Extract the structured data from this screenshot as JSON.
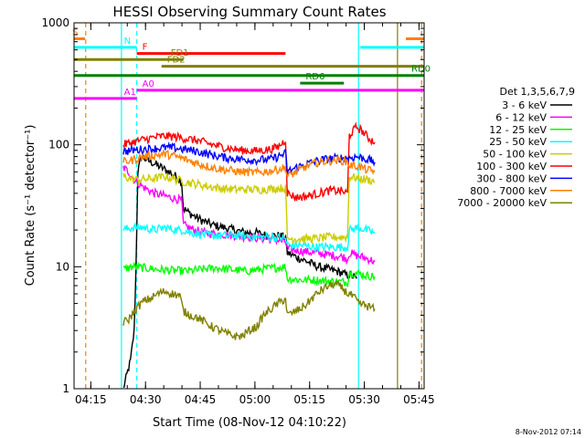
{
  "chart_data": {
    "type": "line",
    "title": "HESSI Observing Summary Count Rates",
    "xlabel": "Start Time (08-Nov-12 04:10:22)",
    "ylabel": "Count Rate (s⁻¹ detector⁻¹)",
    "footer_date": "8-Nov-2012 07:14",
    "y_scale": "log",
    "ylim": [
      1,
      1000
    ],
    "xlim_minutes": [
      0,
      96
    ],
    "x_ticks": [
      {
        "label": "04:15",
        "minute": 4.6
      },
      {
        "label": "04:30",
        "minute": 19.6
      },
      {
        "label": "04:45",
        "minute": 34.6
      },
      {
        "label": "05:00",
        "minute": 49.6
      },
      {
        "label": "05:15",
        "minute": 64.6
      },
      {
        "label": "05:30",
        "minute": 79.6
      },
      {
        "label": "05:45",
        "minute": 94.6
      }
    ],
    "y_ticks": [
      {
        "label": "1",
        "value": 1
      },
      {
        "label": "10",
        "value": 10
      },
      {
        "label": "100",
        "value": 100
      },
      {
        "label": "1000",
        "value": 1000
      }
    ],
    "legend": {
      "header": "Det 1,3,5,6,7,9",
      "position": "right"
    },
    "flags": [
      {
        "label": "S",
        "color": "#ff7f00",
        "y": 740,
        "segments": [
          [
            0,
            3
          ],
          [
            91,
            96
          ]
        ]
      },
      {
        "label": "N",
        "color": "#00ffff",
        "y": 630,
        "segments": [
          [
            0,
            17.2
          ],
          [
            78.5,
            96
          ]
        ]
      },
      {
        "label": "F",
        "color": "#ff0000",
        "y": 560,
        "segments": [
          [
            17.2,
            58
          ]
        ]
      },
      {
        "label": "FD1",
        "color": "#808000",
        "y": 500,
        "segments": [
          [
            0,
            30
          ]
        ]
      },
      {
        "label": "FD2",
        "color": "#808000",
        "y": 440,
        "segments": [
          [
            24,
            96
          ]
        ]
      },
      {
        "label": "RD0",
        "color": "#008000",
        "y": 370,
        "segments": [
          [
            0,
            96
          ]
        ]
      },
      {
        "label": "RD6",
        "color": "#008000",
        "y": 320,
        "segments": [
          [
            62,
            74
          ]
        ]
      },
      {
        "label": "A0",
        "color": "#ff00ff",
        "y": 280,
        "segments": [
          [
            17.2,
            96
          ]
        ]
      },
      {
        "label": "A1",
        "color": "#ff00ff",
        "y": 240,
        "segments": [
          [
            0,
            17.2
          ]
        ]
      }
    ],
    "vertical_markers": [
      {
        "minute": 3.2,
        "color": "#ff7f00",
        "style": "dashed"
      },
      {
        "minute": 13.0,
        "color": "#00ffff",
        "style": "solid"
      },
      {
        "minute": 17.2,
        "color": "#00ffff",
        "style": "dashed"
      },
      {
        "minute": 78.0,
        "color": "#00ffff",
        "style": "solid"
      },
      {
        "minute": 88.7,
        "color": "#808000",
        "style": "solid"
      },
      {
        "minute": 95.3,
        "color": "#ff7f00",
        "style": "dashed"
      }
    ],
    "series": [
      {
        "name": "3 - 6 keV",
        "color": "#000000",
        "points": [
          [
            13.5,
            1
          ],
          [
            14.5,
            1.3
          ],
          [
            15.5,
            1.7
          ],
          [
            16.5,
            3
          ],
          [
            17.0,
            10
          ],
          [
            17.5,
            60
          ],
          [
            18.5,
            80
          ],
          [
            20,
            75
          ],
          [
            22,
            70
          ],
          [
            24,
            65
          ],
          [
            26,
            60
          ],
          [
            28,
            55
          ],
          [
            29.5,
            50
          ],
          [
            30,
            30
          ],
          [
            32,
            27
          ],
          [
            35,
            24
          ],
          [
            38,
            22
          ],
          [
            41,
            21
          ],
          [
            44,
            20
          ],
          [
            47,
            19
          ],
          [
            50,
            19
          ],
          [
            53,
            18
          ],
          [
            56,
            18
          ],
          [
            58,
            17.5
          ],
          [
            58.5,
            13
          ],
          [
            61,
            12
          ],
          [
            64,
            11
          ],
          [
            67,
            10
          ],
          [
            70,
            9.5
          ],
          [
            73,
            9
          ],
          [
            75,
            8.5
          ],
          [
            76,
            8.5
          ],
          [
            77.5,
            8
          ]
        ]
      },
      {
        "name": "6 - 12 keV",
        "color": "#ff00ff",
        "points": [
          [
            13.5,
            65
          ],
          [
            15,
            60
          ],
          [
            17,
            50
          ],
          [
            19,
            45
          ],
          [
            22,
            40
          ],
          [
            25,
            38
          ],
          [
            28,
            36
          ],
          [
            29.5,
            35
          ],
          [
            30,
            22
          ],
          [
            33,
            20
          ],
          [
            36,
            19
          ],
          [
            40,
            18.5
          ],
          [
            44,
            18
          ],
          [
            48,
            17.5
          ],
          [
            52,
            17
          ],
          [
            56,
            16.5
          ],
          [
            58,
            16
          ],
          [
            58.5,
            14
          ],
          [
            62,
            13.5
          ],
          [
            66,
            13
          ],
          [
            70,
            12.5
          ],
          [
            74,
            12
          ],
          [
            75,
            11.5
          ],
          [
            75.5,
            13
          ],
          [
            77,
            12.5
          ],
          [
            79,
            12
          ],
          [
            81,
            11.5
          ],
          [
            82.5,
            11
          ]
        ]
      },
      {
        "name": "12 - 25 keV",
        "color": "#00ff00",
        "points": [
          [
            13.5,
            9.5
          ],
          [
            16,
            10
          ],
          [
            19,
            9.8
          ],
          [
            23,
            9.5
          ],
          [
            27,
            9.3
          ],
          [
            31,
            9.2
          ],
          [
            35,
            9.5
          ],
          [
            39,
            9.8
          ],
          [
            43,
            9.5
          ],
          [
            47,
            9.2
          ],
          [
            51,
            9.5
          ],
          [
            55,
            9.8
          ],
          [
            58,
            10
          ],
          [
            58.5,
            8
          ],
          [
            62,
            7.8
          ],
          [
            66,
            7.8
          ],
          [
            70,
            7.6
          ],
          [
            74,
            7.5
          ],
          [
            75,
            7.5
          ],
          [
            75.5,
            9
          ],
          [
            78,
            8.8
          ],
          [
            80,
            8.5
          ],
          [
            82.5,
            8.3
          ]
        ]
      },
      {
        "name": "25 - 50 keV",
        "color": "#00ffff",
        "points": [
          [
            13.5,
            20
          ],
          [
            16,
            21
          ],
          [
            19,
            21
          ],
          [
            22,
            20
          ],
          [
            25,
            21
          ],
          [
            28,
            20
          ],
          [
            30,
            20
          ],
          [
            32,
            19
          ],
          [
            35,
            18.5
          ],
          [
            38,
            18
          ],
          [
            42,
            18
          ],
          [
            46,
            18
          ],
          [
            50,
            17.5
          ],
          [
            54,
            17.5
          ],
          [
            58,
            17
          ],
          [
            58.5,
            15
          ],
          [
            62,
            15
          ],
          [
            66,
            14.5
          ],
          [
            70,
            14.5
          ],
          [
            74,
            14.5
          ],
          [
            75,
            14.5
          ],
          [
            75.5,
            20
          ],
          [
            78,
            21
          ],
          [
            80,
            20
          ],
          [
            82.5,
            19
          ]
        ]
      },
      {
        "name": "50 - 100 keV",
        "color": "#cccc00",
        "points": [
          [
            13.5,
            55
          ],
          [
            16,
            52
          ],
          [
            19,
            52
          ],
          [
            22,
            53
          ],
          [
            25,
            55
          ],
          [
            28,
            52
          ],
          [
            30,
            50
          ],
          [
            33,
            48
          ],
          [
            36,
            46
          ],
          [
            40,
            44
          ],
          [
            44,
            43
          ],
          [
            48,
            43
          ],
          [
            52,
            43
          ],
          [
            56,
            44
          ],
          [
            58,
            44
          ],
          [
            58.5,
            17
          ],
          [
            62,
            17
          ],
          [
            66,
            17
          ],
          [
            70,
            17.5
          ],
          [
            74,
            17.5
          ],
          [
            75,
            17.5
          ],
          [
            75.5,
            55
          ],
          [
            78,
            53
          ],
          [
            80,
            52
          ],
          [
            82.5,
            50
          ]
        ]
      },
      {
        "name": "100 - 300 keV",
        "color": "#ff0000",
        "points": [
          [
            13.5,
            100
          ],
          [
            16,
            105
          ],
          [
            19,
            110
          ],
          [
            22,
            115
          ],
          [
            25,
            118
          ],
          [
            28,
            116
          ],
          [
            31,
            112
          ],
          [
            34,
            108
          ],
          [
            38,
            100
          ],
          [
            42,
            94
          ],
          [
            46,
            90
          ],
          [
            50,
            89
          ],
          [
            54,
            92
          ],
          [
            56,
            96
          ],
          [
            58,
            110
          ],
          [
            58.5,
            40
          ],
          [
            61,
            37
          ],
          [
            64,
            38
          ],
          [
            67,
            40
          ],
          [
            70,
            42
          ],
          [
            73,
            42
          ],
          [
            75,
            40
          ],
          [
            75.5,
            120
          ],
          [
            77.5,
            140
          ],
          [
            79,
            130
          ],
          [
            80.5,
            115
          ],
          [
            82.5,
            105
          ]
        ]
      },
      {
        "name": "300 - 800 keV",
        "color": "#0000ff",
        "points": [
          [
            13.5,
            88
          ],
          [
            16,
            90
          ],
          [
            19,
            92
          ],
          [
            22,
            93
          ],
          [
            25,
            95
          ],
          [
            28,
            94
          ],
          [
            31,
            91
          ],
          [
            34,
            88
          ],
          [
            38,
            82
          ],
          [
            42,
            78
          ],
          [
            46,
            76
          ],
          [
            50,
            75
          ],
          [
            54,
            76
          ],
          [
            56,
            80
          ],
          [
            58,
            85
          ],
          [
            58.5,
            60
          ],
          [
            61,
            65
          ],
          [
            64,
            70
          ],
          [
            67,
            74
          ],
          [
            70,
            77
          ],
          [
            73,
            78
          ],
          [
            75,
            78
          ],
          [
            75.5,
            78
          ],
          [
            77.5,
            80
          ],
          [
            79,
            78
          ],
          [
            80.5,
            76
          ],
          [
            82.5,
            72
          ]
        ]
      },
      {
        "name": "800 - 7000 keV",
        "color": "#ff7f00",
        "points": [
          [
            13.5,
            72
          ],
          [
            16,
            75
          ],
          [
            19,
            80
          ],
          [
            22,
            82
          ],
          [
            25,
            84
          ],
          [
            28,
            80
          ],
          [
            31,
            75
          ],
          [
            34,
            70
          ],
          [
            38,
            65
          ],
          [
            42,
            62
          ],
          [
            46,
            60
          ],
          [
            50,
            59
          ],
          [
            54,
            61
          ],
          [
            56,
            63
          ],
          [
            58,
            65
          ],
          [
            58.5,
            55
          ],
          [
            61,
            60
          ],
          [
            64,
            67
          ],
          [
            67,
            72
          ],
          [
            70,
            74
          ],
          [
            73,
            75
          ],
          [
            75,
            72
          ],
          [
            75.5,
            68
          ],
          [
            77.5,
            67
          ],
          [
            79,
            65
          ],
          [
            80.5,
            62
          ],
          [
            82.5,
            60
          ]
        ]
      },
      {
        "name": "7000 - 20000 keV",
        "color": "#808000",
        "points": [
          [
            13.5,
            3.5
          ],
          [
            15,
            3.7
          ],
          [
            17,
            4.5
          ],
          [
            19,
            5.2
          ],
          [
            21,
            5.5
          ],
          [
            23,
            6
          ],
          [
            25,
            6.3
          ],
          [
            27,
            6
          ],
          [
            29,
            5.8
          ],
          [
            30,
            4.3
          ],
          [
            32,
            4
          ],
          [
            34,
            3.8
          ],
          [
            36,
            3.5
          ],
          [
            38,
            3.2
          ],
          [
            40,
            3
          ],
          [
            42,
            2.8
          ],
          [
            44,
            2.7
          ],
          [
            46,
            2.7
          ],
          [
            48,
            3
          ],
          [
            50,
            3.2
          ],
          [
            52,
            4
          ],
          [
            54,
            4.5
          ],
          [
            56,
            5
          ],
          [
            58,
            5.5
          ],
          [
            58.5,
            4
          ],
          [
            60,
            4.2
          ],
          [
            62,
            4.5
          ],
          [
            64,
            5
          ],
          [
            66,
            5.8
          ],
          [
            68,
            6.5
          ],
          [
            70,
            7
          ],
          [
            72,
            7.2
          ],
          [
            74,
            6.5
          ],
          [
            75,
            6
          ],
          [
            75.5,
            6
          ],
          [
            77,
            5.5
          ],
          [
            78,
            5
          ],
          [
            80,
            4.8
          ],
          [
            82.5,
            4.5
          ]
        ]
      }
    ]
  }
}
